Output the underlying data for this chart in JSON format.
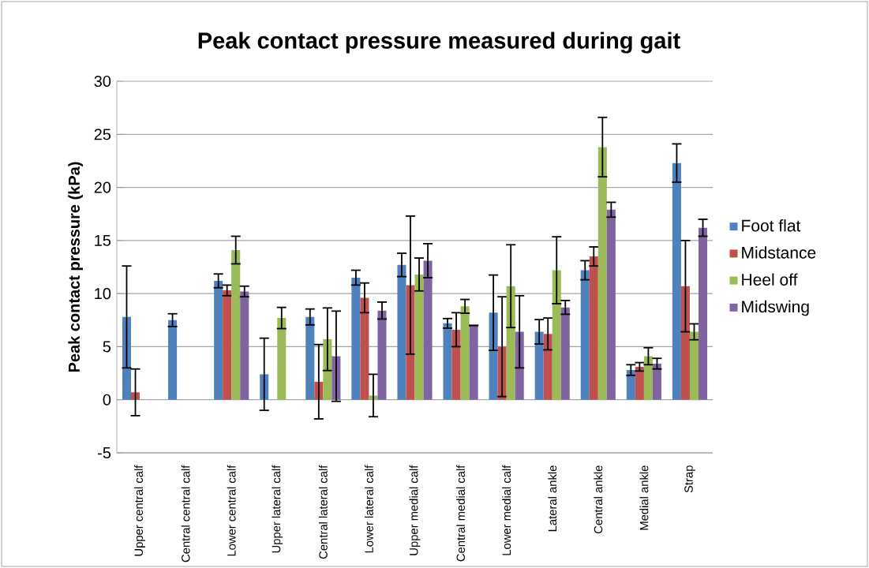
{
  "chart_data": {
    "type": "bar",
    "title": "Peak contact pressure measured during gait",
    "ylabel": "Peak contact pressure (kPa)",
    "categories": [
      "Upper central calf",
      "Central central calf",
      "Lower central calf",
      "Upper lateral calf",
      "Central lateral calf",
      "Lower lateral calf",
      "Upper medial calf",
      "Central medial calf",
      "Lower medial calf",
      "Lateral ankle",
      "Central ankle",
      "Medial ankle",
      "Strap"
    ],
    "series": [
      {
        "name": "Foot flat",
        "color": "#4f81bd",
        "values": [
          7.8,
          7.5,
          11.2,
          2.4,
          7.8,
          11.5,
          12.7,
          7.2,
          8.2,
          6.4,
          12.2,
          2.8,
          22.3
        ],
        "errors": [
          4.8,
          0.6,
          0.65,
          3.4,
          0.75,
          0.7,
          1.1,
          0.45,
          3.55,
          1.15,
          0.9,
          0.5,
          1.8
        ]
      },
      {
        "name": "Midstance",
        "color": "#c0504d",
        "values": [
          0.7,
          0,
          10.3,
          0,
          1.7,
          9.6,
          10.8,
          6.6,
          5.0,
          6.2,
          13.5,
          3.1,
          10.7
        ],
        "errors": [
          2.2,
          null,
          0.5,
          null,
          3.5,
          1.4,
          6.5,
          1.6,
          4.7,
          1.5,
          0.9,
          0.4,
          4.3
        ]
      },
      {
        "name": "Heel off",
        "color": "#9bbb59",
        "values": [
          0,
          0,
          14.1,
          7.7,
          5.7,
          0.4,
          11.8,
          8.8,
          10.7,
          12.2,
          23.8,
          4.1,
          6.4
        ],
        "errors": [
          null,
          null,
          1.3,
          1.0,
          2.95,
          2.0,
          1.55,
          0.65,
          3.9,
          3.15,
          2.8,
          0.8,
          0.75
        ]
      },
      {
        "name": "Midswing",
        "color": "#8064a2",
        "values": [
          0,
          0,
          10.2,
          0,
          4.1,
          8.4,
          13.1,
          7.0,
          6.4,
          8.7,
          17.9,
          3.4,
          16.2
        ],
        "errors": [
          null,
          null,
          0.5,
          null,
          4.25,
          0.8,
          1.6,
          0,
          3.4,
          0.65,
          0.7,
          0.5,
          0.8
        ]
      }
    ],
    "ylim": [
      -5,
      30
    ],
    "yticks": [
      -5,
      0,
      5,
      10,
      15,
      20,
      25,
      30
    ],
    "grid": "y",
    "legend": "right"
  }
}
